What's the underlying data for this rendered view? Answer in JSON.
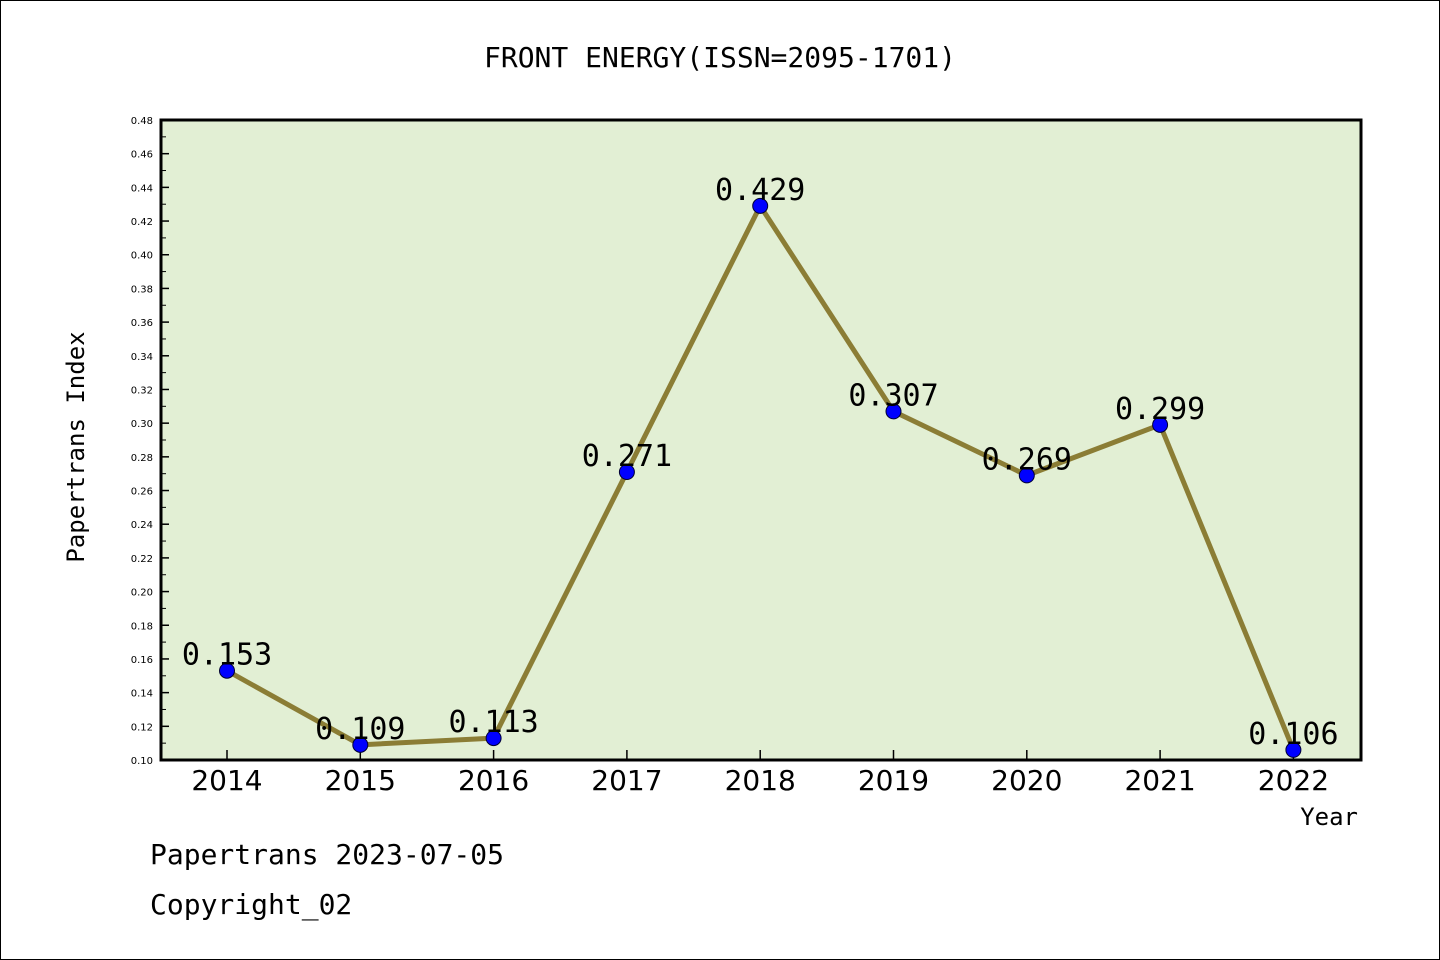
{
  "chart_data": {
    "type": "line",
    "title": "FRONT ENERGY(ISSN=2095-1701)",
    "xlabel": "Year",
    "ylabel": "Papertrans Index",
    "categories": [
      "2014",
      "2015",
      "2016",
      "2017",
      "2018",
      "2019",
      "2020",
      "2021",
      "2022"
    ],
    "values": [
      0.153,
      0.109,
      0.113,
      0.271,
      0.429,
      0.307,
      0.269,
      0.299,
      0.106
    ],
    "data_labels": [
      "0.153",
      "0.109",
      "0.113",
      "0.271",
      "0.429",
      "0.307",
      "0.269",
      "0.299",
      "0.106"
    ],
    "ylim": [
      0.1,
      0.48
    ],
    "yticks": [
      "0.10",
      "0.12",
      "0.14",
      "0.16",
      "0.18",
      "0.20",
      "0.22",
      "0.24",
      "0.26",
      "0.28",
      "0.30",
      "0.32",
      "0.34",
      "0.36",
      "0.38",
      "0.40",
      "0.42",
      "0.44",
      "0.46",
      "0.48"
    ],
    "grid": false,
    "legend": "none",
    "colors": {
      "plot_background": "#e2efd4",
      "line": "#8b7d35",
      "marker": "#0000ff"
    }
  },
  "footer": {
    "line1": "Papertrans 2023-07-05",
    "line2": "Copyright_02"
  }
}
